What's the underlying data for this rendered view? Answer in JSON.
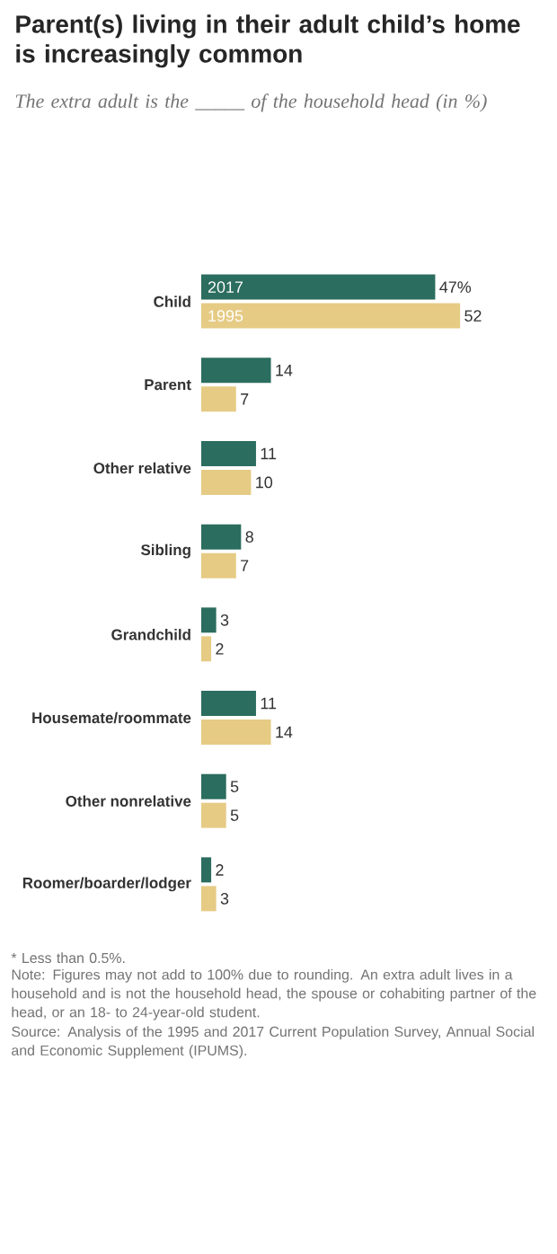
{
  "chart_data": {
    "type": "bar",
    "orientation": "horizontal",
    "title": "Parent(s) living in their adult child’s home is increasingly common",
    "subtitle": "The extra adult is the _____ of the household head (in %)",
    "categories": [
      "Child",
      "Parent",
      "Other relative",
      "Sibling",
      "Grandchild",
      "Housemate/roommate",
      "Other nonrelative",
      "Roomer/boarder/lodger"
    ],
    "series": [
      {
        "name": "2017",
        "color": "#2b6d5e",
        "values": [
          47,
          14,
          11,
          8,
          3,
          11,
          5,
          2
        ],
        "value_labels": [
          "47%",
          "14",
          "11",
          "8",
          "3",
          "11",
          "5",
          "2"
        ]
      },
      {
        "name": "1995",
        "color": "#e6cb85",
        "values": [
          52,
          7,
          10,
          7,
          2,
          14,
          5,
          3
        ],
        "value_labels": [
          "52",
          "7",
          "10",
          "7",
          "2",
          "14",
          "5",
          "3"
        ]
      }
    ],
    "annotations": [
      "* Less than 0.5%.",
      "Note: Figures may not add to 100% due to rounding. An extra adult lives in a household and is not the household head, the spouse or cohabiting partner of the head, or an 18- to 24-year-old student.",
      "Source: Analysis of the 1995 and 2017 Current Population Survey, Annual Social and Economic Supplement (IPUMS)."
    ]
  }
}
